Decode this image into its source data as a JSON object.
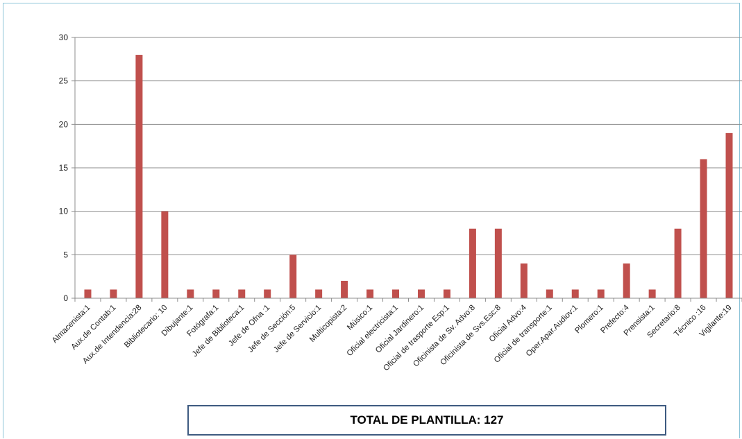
{
  "chart_data": {
    "type": "bar",
    "title": "",
    "xlabel": "",
    "ylabel": "",
    "ylim": [
      0,
      30
    ],
    "yticks": [
      "0",
      "5",
      "10",
      "15",
      "20",
      "25",
      "30"
    ],
    "grid": true,
    "legend": "none",
    "bar_color": "#c0504d",
    "categories": [
      "Almacenista:1",
      "Aux.de Contab:1",
      "Aux.de Intendencia:28",
      "Bibliotecario: 10",
      "Dibujante:1",
      "Fotógrafa:1",
      "Jefe de Biblioteca:1",
      "Jefe de Ofna :1",
      "Jefe de Sección:5",
      "Jefe de Servicio:1",
      "Multicopista:2",
      "Músico:1",
      "Oficial electricista:1",
      "Oficial Jardinero:1",
      "Oficial de trasporte Esp:1",
      "Oficinista de Sv. Advo:8",
      "Oficinista de Svs.Esc:8",
      "Oficial Advo:4",
      "Oficial de transporte:1",
      "Oper.Apar.Audiov:1",
      "Plomero:1",
      "Prefecto:4",
      "Prensista:1",
      "Secretario:8",
      "Técnico :16",
      "Vigilante:19"
    ],
    "values": [
      1,
      1,
      28,
      10,
      1,
      1,
      1,
      1,
      5,
      1,
      2,
      1,
      1,
      1,
      1,
      8,
      8,
      4,
      1,
      1,
      1,
      4,
      1,
      8,
      16,
      19
    ]
  },
  "total_label": "TOTAL DE PLANTILLA: 127"
}
